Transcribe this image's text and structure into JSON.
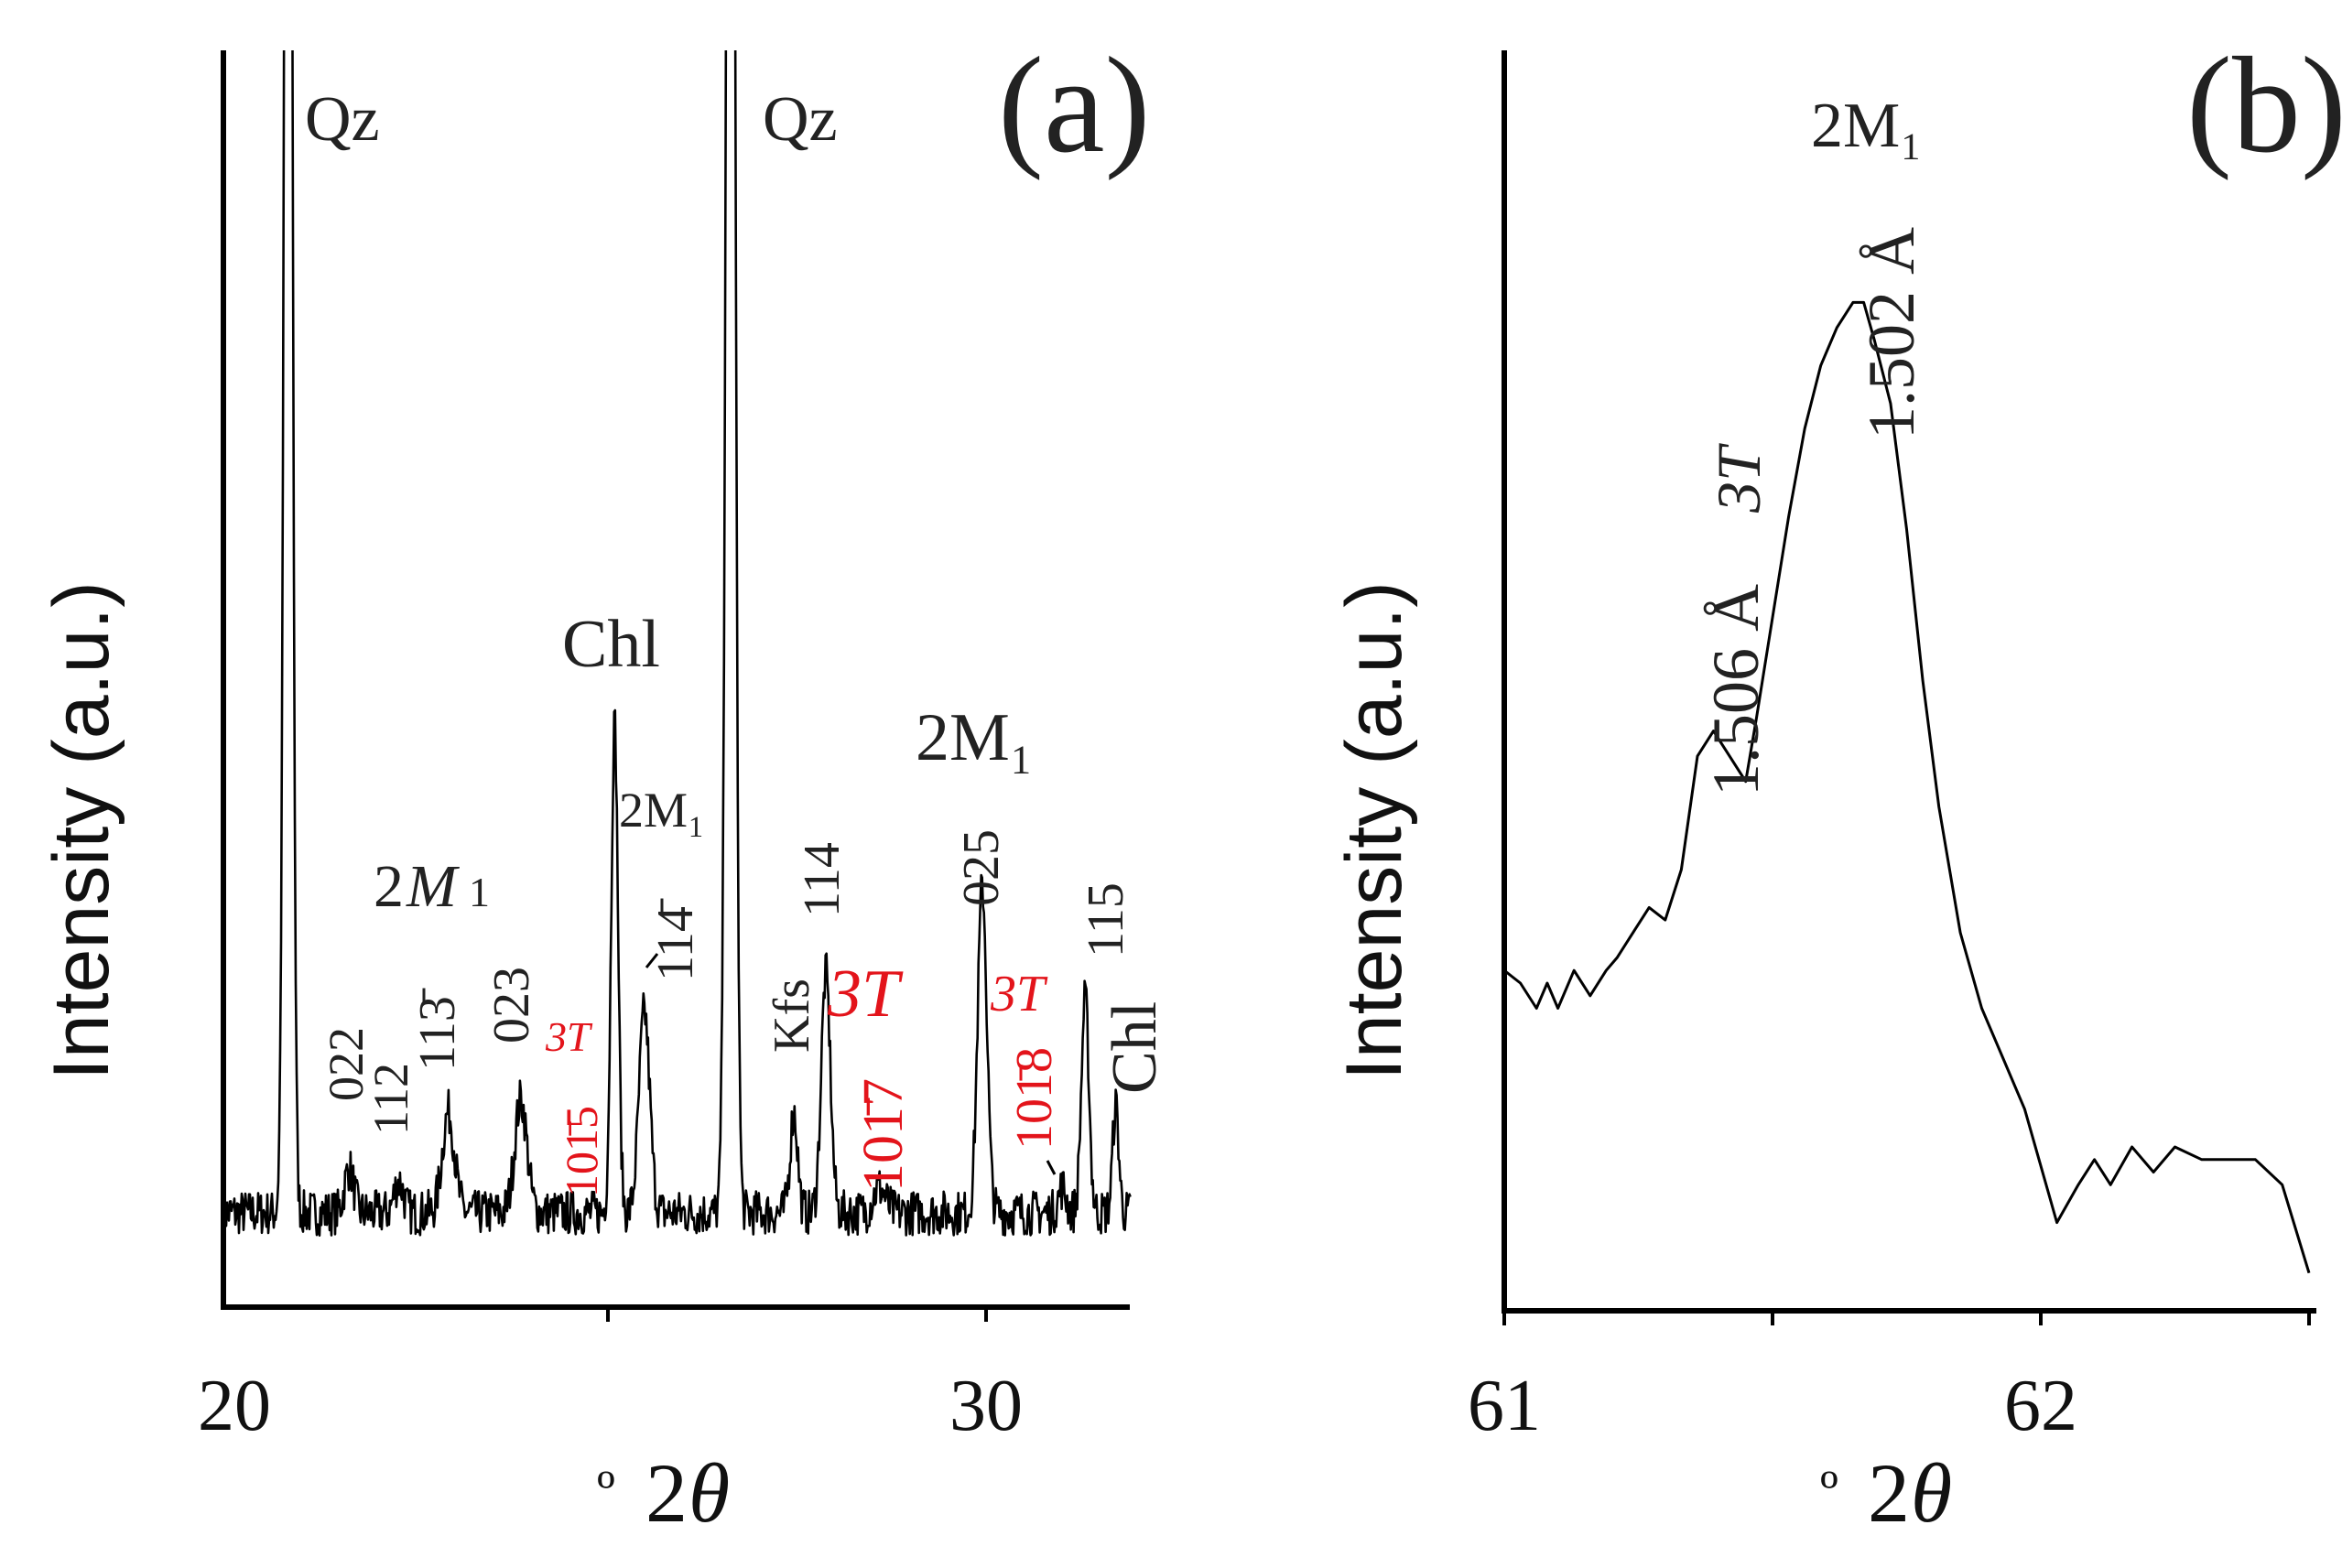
{
  "chart_data": [
    {
      "panel": "(a)",
      "type": "line",
      "ylabel": "Intensity (a.u.)",
      "xlabel": "º 2θ",
      "xlim": [
        20,
        32.0
      ],
      "ylim": [
        0,
        1
      ],
      "xticks": [
        20,
        30
      ],
      "xtick_labels": [
        "20",
        "30"
      ],
      "baseline": 0.075,
      "noise": 0.018,
      "peaks": [
        {
          "x": 20.85,
          "h": 2.0,
          "w": 0.045
        },
        {
          "x": 21.65,
          "h": 0.035,
          "w": 0.06
        },
        {
          "x": 22.3,
          "h": 0.025,
          "w": 0.06
        },
        {
          "x": 22.95,
          "h": 0.08,
          "w": 0.08
        },
        {
          "x": 23.9,
          "h": 0.09,
          "w": 0.08
        },
        {
          "x": 25.13,
          "h": 0.39,
          "w": 0.045
        },
        {
          "x": 25.52,
          "h": 0.16,
          "w": 0.07
        },
        {
          "x": 26.65,
          "h": 2.0,
          "w": 0.05
        },
        {
          "x": 27.48,
          "h": 0.08,
          "w": 0.05
        },
        {
          "x": 27.9,
          "h": 0.19,
          "w": 0.06
        },
        {
          "x": 28.6,
          "h": 0.02,
          "w": 0.08
        },
        {
          "x": 29.95,
          "h": 0.26,
          "w": 0.06
        },
        {
          "x": 31.0,
          "h": 0.02,
          "w": 0.05
        },
        {
          "x": 31.3,
          "h": 0.17,
          "w": 0.05
        },
        {
          "x": 31.7,
          "h": 0.085,
          "w": 0.04
        }
      ],
      "annotations": [
        {
          "id": "qz1",
          "text": "Qz"
        },
        {
          "id": "qz2",
          "text": "Qz"
        },
        {
          "id": "chl_top",
          "text": "Chl"
        },
        {
          "id": "m1_left_2",
          "text": "2"
        },
        {
          "id": "m1_left_M",
          "text": "M"
        },
        {
          "id": "m1_left_sub",
          "text": "1"
        },
        {
          "id": "m1_mid",
          "text": "2M₁"
        },
        {
          "id": "m1_right",
          "text": "2M₁"
        },
        {
          "id": "hkl_022",
          "text": "022"
        },
        {
          "id": "hkl_112",
          "text": "112"
        },
        {
          "id": "hkl_113",
          "text": "113̄"
        },
        {
          "id": "hkl_023",
          "text": "023"
        },
        {
          "id": "t3_a",
          "text": "3T"
        },
        {
          "id": "hkl_1015",
          "text": "101̄5"
        },
        {
          "id": "hkl_114bar",
          "text": "114̄"
        },
        {
          "id": "kfs",
          "text": "Kfs"
        },
        {
          "id": "hkl_114",
          "text": "114"
        },
        {
          "id": "t3_b",
          "text": "3T"
        },
        {
          "id": "hkl_1017",
          "text": "101̄7"
        },
        {
          "id": "hkl_025",
          "text": "025"
        },
        {
          "id": "t3_c",
          "text": "3T"
        },
        {
          "id": "hkl_1018",
          "text": "101̄8"
        },
        {
          "id": "hkl_115",
          "text": "115"
        },
        {
          "id": "chl_right",
          "text": "Chl"
        }
      ]
    },
    {
      "panel": "(b)",
      "type": "line",
      "ylabel": "Intensity (a.u.)",
      "xlabel": "º 2θ",
      "xlim": [
        61,
        62.5
      ],
      "ylim": [
        0,
        1
      ],
      "xticks": [
        61,
        62
      ],
      "xtick_labels": [
        "61",
        "62"
      ],
      "x": [
        61.0,
        61.03,
        61.06,
        61.08,
        61.1,
        61.13,
        61.16,
        61.19,
        61.21,
        61.24,
        61.27,
        61.3,
        61.33,
        61.36,
        61.39,
        61.42,
        61.45,
        61.47,
        61.5,
        61.53,
        61.56,
        61.59,
        61.62,
        61.65,
        61.67,
        61.69,
        61.72,
        61.75,
        61.78,
        61.81,
        61.85,
        61.89,
        61.93,
        61.97,
        62.03,
        62.07,
        62.1,
        62.13,
        62.17,
        62.21,
        62.25,
        62.3,
        62.35,
        62.4,
        62.45,
        62.5
      ],
      "y": [
        0.27,
        0.26,
        0.24,
        0.26,
        0.24,
        0.27,
        0.25,
        0.27,
        0.28,
        0.3,
        0.32,
        0.31,
        0.35,
        0.44,
        0.46,
        0.44,
        0.42,
        0.47,
        0.55,
        0.63,
        0.7,
        0.75,
        0.78,
        0.8,
        0.8,
        0.77,
        0.72,
        0.62,
        0.5,
        0.4,
        0.3,
        0.24,
        0.2,
        0.16,
        0.07,
        0.1,
        0.12,
        0.1,
        0.13,
        0.11,
        0.13,
        0.12,
        0.12,
        0.12,
        0.1,
        0.03
      ],
      "annotations": [
        {
          "id": "b_3t",
          "text": "3T"
        },
        {
          "id": "b_1506",
          "text": "1.506 Å"
        },
        {
          "id": "b_2m1",
          "text": "2M₁"
        },
        {
          "id": "b_1502",
          "text": "1.502 Å"
        }
      ]
    }
  ],
  "labels": {
    "panel_a": "(a)",
    "panel_b": "(b)",
    "ylabel_a": "Intensity (a.u.)",
    "ylabel_b": "Intensity (a.u.)",
    "xlabel_a_deg": "º",
    "xlabel_a_2": "2",
    "xlabel_a_theta": "θ",
    "xlabel_b_deg": "º",
    "xlabel_b_2": "2",
    "xlabel_b_theta": "θ",
    "tick_20": "20",
    "tick_30": "30",
    "tick_61": "61",
    "tick_62": "62"
  },
  "colors": {
    "line": "#000000",
    "text": "#222222",
    "highlight": "#e3141b"
  }
}
